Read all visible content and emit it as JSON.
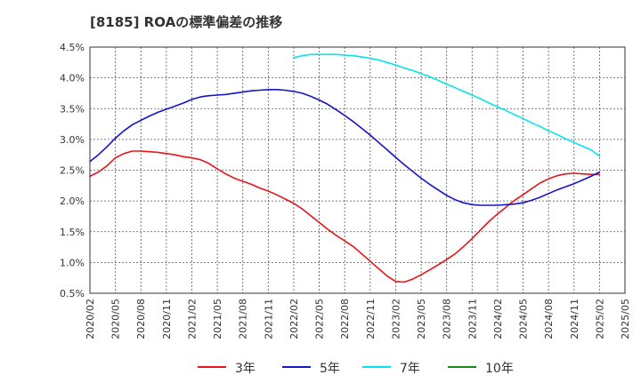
{
  "chart_data": {
    "type": "line",
    "title": "[8185]  ROAの標準偏差の推移",
    "xlabel": "",
    "ylabel": "",
    "x_ticks": [
      "2020/02",
      "2020/05",
      "2020/08",
      "2020/11",
      "2021/02",
      "2021/05",
      "2021/08",
      "2021/11",
      "2022/02",
      "2022/05",
      "2022/08",
      "2022/11",
      "2023/02",
      "2023/05",
      "2023/08",
      "2023/11",
      "2024/02",
      "2024/05",
      "2024/08",
      "2024/11",
      "2025/02",
      "2025/05"
    ],
    "y_ticks": [
      "0.5%",
      "1.0%",
      "1.5%",
      "2.0%",
      "2.5%",
      "3.0%",
      "3.5%",
      "4.0%",
      "4.5%"
    ],
    "ylim": [
      0.5,
      4.5
    ],
    "grid": true,
    "legend_position": "bottom",
    "series": [
      {
        "name": "3年",
        "color": "#e8141b",
        "x": [
          "2020/02",
          "2020/03",
          "2020/04",
          "2020/05",
          "2020/06",
          "2020/07",
          "2020/08",
          "2020/09",
          "2020/10",
          "2020/11",
          "2020/12",
          "2021/01",
          "2021/02",
          "2021/03",
          "2021/04",
          "2021/05",
          "2021/06",
          "2021/07",
          "2021/08",
          "2021/09",
          "2021/10",
          "2021/11",
          "2021/12",
          "2022/01",
          "2022/02",
          "2022/03",
          "2022/04",
          "2022/05",
          "2022/06",
          "2022/07",
          "2022/08",
          "2022/09",
          "2022/10",
          "2022/11",
          "2022/12",
          "2023/01",
          "2023/02",
          "2023/03",
          "2023/04",
          "2023/05",
          "2023/06",
          "2023/07",
          "2023/08",
          "2023/09",
          "2023/10",
          "2023/11",
          "2023/12",
          "2024/01",
          "2024/02",
          "2024/03",
          "2024/04",
          "2024/05",
          "2024/06",
          "2024/07",
          "2024/08",
          "2024/09",
          "2024/10",
          "2024/11",
          "2024/12",
          "2025/01",
          "2025/02"
        ],
        "values": [
          2.4,
          2.47,
          2.57,
          2.7,
          2.77,
          2.81,
          2.81,
          2.8,
          2.79,
          2.77,
          2.75,
          2.72,
          2.7,
          2.67,
          2.61,
          2.52,
          2.44,
          2.37,
          2.32,
          2.27,
          2.21,
          2.16,
          2.1,
          2.03,
          1.96,
          1.87,
          1.76,
          1.65,
          1.54,
          1.44,
          1.35,
          1.26,
          1.14,
          1.02,
          0.9,
          0.78,
          0.69,
          0.68,
          0.73,
          0.8,
          0.88,
          0.96,
          1.05,
          1.14,
          1.26,
          1.39,
          1.53,
          1.67,
          1.79,
          1.9,
          2.01,
          2.1,
          2.2,
          2.29,
          2.36,
          2.41,
          2.44,
          2.45,
          2.44,
          2.43,
          2.43
        ]
      },
      {
        "name": "5年",
        "color": "#1414c8",
        "x": [
          "2020/02",
          "2020/03",
          "2020/04",
          "2020/05",
          "2020/06",
          "2020/07",
          "2020/08",
          "2020/09",
          "2020/10",
          "2020/11",
          "2020/12",
          "2021/01",
          "2021/02",
          "2021/03",
          "2021/04",
          "2021/05",
          "2021/06",
          "2021/07",
          "2021/08",
          "2021/09",
          "2021/10",
          "2021/11",
          "2021/12",
          "2022/01",
          "2022/02",
          "2022/03",
          "2022/04",
          "2022/05",
          "2022/06",
          "2022/07",
          "2022/08",
          "2022/09",
          "2022/10",
          "2022/11",
          "2022/12",
          "2023/01",
          "2023/02",
          "2023/03",
          "2023/04",
          "2023/05",
          "2023/06",
          "2023/07",
          "2023/08",
          "2023/09",
          "2023/10",
          "2023/11",
          "2023/12",
          "2024/01",
          "2024/02",
          "2024/03",
          "2024/04",
          "2024/05",
          "2024/06",
          "2024/07",
          "2024/08",
          "2024/09",
          "2024/10",
          "2024/11",
          "2024/12",
          "2025/01",
          "2025/02"
        ],
        "values": [
          2.64,
          2.75,
          2.88,
          3.02,
          3.14,
          3.24,
          3.31,
          3.38,
          3.44,
          3.49,
          3.54,
          3.59,
          3.65,
          3.69,
          3.71,
          3.72,
          3.73,
          3.75,
          3.77,
          3.79,
          3.8,
          3.81,
          3.81,
          3.8,
          3.78,
          3.75,
          3.7,
          3.64,
          3.57,
          3.48,
          3.39,
          3.29,
          3.18,
          3.07,
          2.95,
          2.83,
          2.71,
          2.59,
          2.48,
          2.37,
          2.27,
          2.18,
          2.09,
          2.02,
          1.97,
          1.94,
          1.93,
          1.93,
          1.93,
          1.94,
          1.95,
          1.97,
          2.01,
          2.06,
          2.12,
          2.18,
          2.23,
          2.28,
          2.34,
          2.4,
          2.47
        ]
      },
      {
        "name": "7年",
        "color": "#00e5ee",
        "x": [
          "2022/02",
          "2022/03",
          "2022/04",
          "2022/05",
          "2022/06",
          "2022/07",
          "2022/08",
          "2022/09",
          "2022/10",
          "2022/11",
          "2022/12",
          "2023/01",
          "2023/02",
          "2023/03",
          "2023/04",
          "2023/05",
          "2023/06",
          "2023/07",
          "2023/08",
          "2023/09",
          "2023/10",
          "2023/11",
          "2023/12",
          "2024/01",
          "2024/02",
          "2024/03",
          "2024/04",
          "2024/05",
          "2024/06",
          "2024/07",
          "2024/08",
          "2024/09",
          "2024/10",
          "2024/11",
          "2024/12",
          "2025/01",
          "2025/02"
        ],
        "values": [
          4.33,
          4.36,
          4.38,
          4.38,
          4.38,
          4.38,
          4.37,
          4.36,
          4.34,
          4.32,
          4.29,
          4.25,
          4.21,
          4.16,
          4.12,
          4.07,
          4.02,
          3.96,
          3.9,
          3.84,
          3.78,
          3.72,
          3.66,
          3.59,
          3.53,
          3.47,
          3.4,
          3.34,
          3.27,
          3.21,
          3.14,
          3.08,
          3.01,
          2.95,
          2.89,
          2.83,
          2.73
        ]
      },
      {
        "name": "10年",
        "color": "#1a8a1a",
        "x": [],
        "values": []
      }
    ]
  }
}
